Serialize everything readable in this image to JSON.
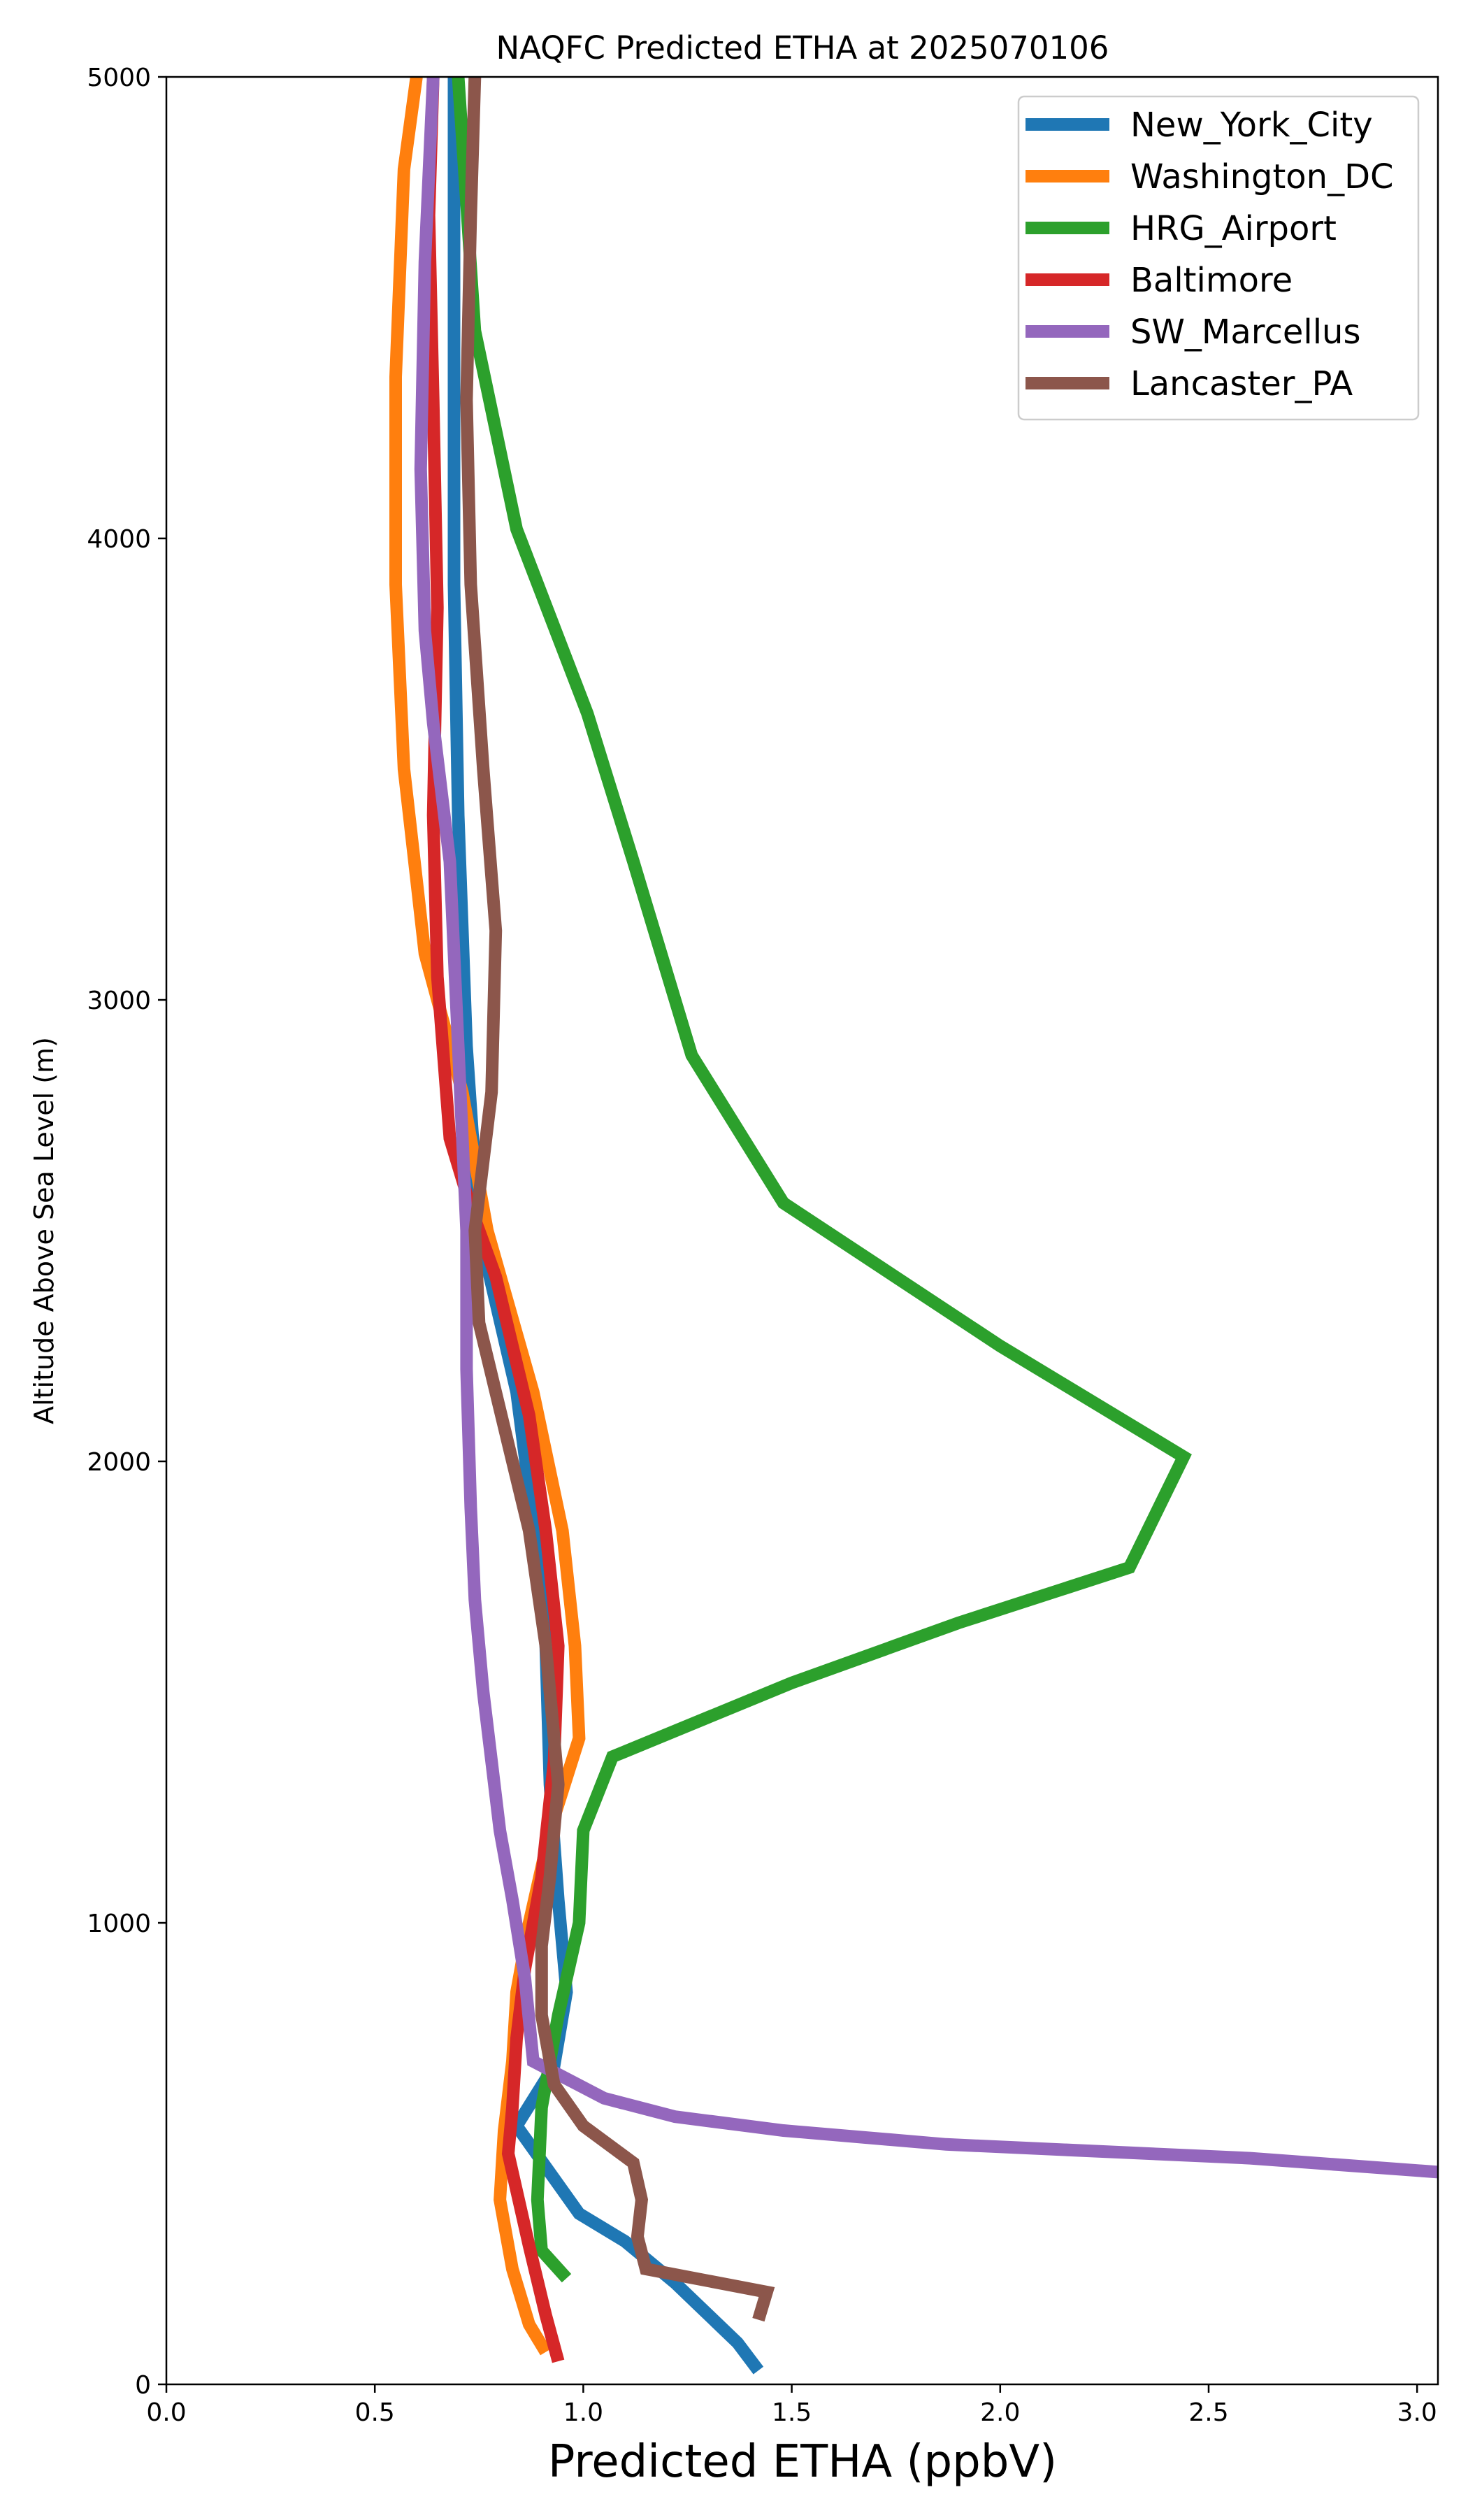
{
  "chart_data": {
    "type": "line",
    "title": "NAQFC Predicted ETHA at 2025070106",
    "xlabel": "Predicted ETHA (ppbV)",
    "ylabel": "Altitude Above Sea Level (m)",
    "xlim": [
      0.0,
      3.05
    ],
    "ylim": [
      0,
      5000
    ],
    "xticks": [
      {
        "value": 0.0,
        "label": "0.0"
      },
      {
        "value": 0.5,
        "label": "0.5"
      },
      {
        "value": 1.0,
        "label": "1.0"
      },
      {
        "value": 1.5,
        "label": "1.5"
      },
      {
        "value": 2.0,
        "label": "2.0"
      },
      {
        "value": 2.5,
        "label": "2.5"
      },
      {
        "value": 3.0,
        "label": "3.0"
      }
    ],
    "yticks": [
      {
        "value": 0,
        "label": "0"
      },
      {
        "value": 1000,
        "label": "1000"
      },
      {
        "value": 2000,
        "label": "2000"
      },
      {
        "value": 3000,
        "label": "3000"
      },
      {
        "value": 4000,
        "label": "4000"
      },
      {
        "value": 5000,
        "label": "5000"
      }
    ],
    "grid": false,
    "legend_position": "top-right",
    "series": [
      {
        "name": "New_York_City",
        "color": "#1f77b4",
        "points": [
          [
            1.42,
            30
          ],
          [
            1.37,
            90
          ],
          [
            1.22,
            220
          ],
          [
            1.1,
            310
          ],
          [
            0.99,
            370
          ],
          [
            0.84,
            560
          ],
          [
            0.93,
            690
          ],
          [
            0.96,
            850
          ],
          [
            0.94,
            1050
          ],
          [
            0.92,
            1300
          ],
          [
            0.91,
            1600
          ],
          [
            0.89,
            1800
          ],
          [
            0.84,
            2150
          ],
          [
            0.75,
            2500
          ],
          [
            0.72,
            2900
          ],
          [
            0.7,
            3400
          ],
          [
            0.69,
            3900
          ],
          [
            0.69,
            4300
          ],
          [
            0.69,
            4700
          ],
          [
            0.69,
            5000
          ]
        ]
      },
      {
        "name": "Washington_DC",
        "color": "#ff7f0e",
        "points": [
          [
            0.91,
            70
          ],
          [
            0.87,
            130
          ],
          [
            0.83,
            250
          ],
          [
            0.8,
            400
          ],
          [
            0.81,
            550
          ],
          [
            0.83,
            700
          ],
          [
            0.84,
            850
          ],
          [
            0.87,
            1000
          ],
          [
            0.92,
            1200
          ],
          [
            0.99,
            1400
          ],
          [
            0.98,
            1600
          ],
          [
            0.95,
            1850
          ],
          [
            0.88,
            2150
          ],
          [
            0.77,
            2500
          ],
          [
            0.71,
            2800
          ],
          [
            0.62,
            3100
          ],
          [
            0.57,
            3500
          ],
          [
            0.55,
            3900
          ],
          [
            0.55,
            4350
          ],
          [
            0.57,
            4800
          ],
          [
            0.6,
            5000
          ]
        ]
      },
      {
        "name": "HRG_Airport",
        "color": "#2ca02c",
        "points": [
          [
            0.96,
            230
          ],
          [
            0.9,
            290
          ],
          [
            0.89,
            400
          ],
          [
            0.9,
            600
          ],
          [
            0.94,
            800
          ],
          [
            0.99,
            1000
          ],
          [
            1.0,
            1200
          ],
          [
            1.07,
            1360
          ],
          [
            1.5,
            1520
          ],
          [
            1.9,
            1650
          ],
          [
            2.31,
            1770
          ],
          [
            2.44,
            2010
          ],
          [
            2.0,
            2250
          ],
          [
            1.48,
            2560
          ],
          [
            1.26,
            2880
          ],
          [
            1.12,
            3300
          ],
          [
            1.01,
            3620
          ],
          [
            0.84,
            4020
          ],
          [
            0.74,
            4450
          ],
          [
            0.7,
            5000
          ]
        ]
      },
      {
        "name": "Baltimore",
        "color": "#d62728",
        "points": [
          [
            0.94,
            50
          ],
          [
            0.91,
            150
          ],
          [
            0.87,
            300
          ],
          [
            0.82,
            500
          ],
          [
            0.83,
            600
          ],
          [
            0.84,
            750
          ],
          [
            0.86,
            900
          ],
          [
            0.9,
            1100
          ],
          [
            0.93,
            1350
          ],
          [
            0.94,
            1600
          ],
          [
            0.91,
            1850
          ],
          [
            0.87,
            2100
          ],
          [
            0.79,
            2400
          ],
          [
            0.73,
            2550
          ],
          [
            0.68,
            2700
          ],
          [
            0.65,
            3050
          ],
          [
            0.64,
            3400
          ],
          [
            0.65,
            3850
          ],
          [
            0.64,
            4300
          ],
          [
            0.63,
            4700
          ],
          [
            0.64,
            5000
          ]
        ]
      },
      {
        "name": "SW_Marcellus",
        "color": "#9467bd",
        "points": [
          [
            3.05,
            460
          ],
          [
            2.6,
            490
          ],
          [
            1.87,
            520
          ],
          [
            1.48,
            550
          ],
          [
            1.22,
            580
          ],
          [
            1.05,
            620
          ],
          [
            0.88,
            700
          ],
          [
            0.86,
            880
          ],
          [
            0.83,
            1050
          ],
          [
            0.8,
            1200
          ],
          [
            0.78,
            1350
          ],
          [
            0.76,
            1500
          ],
          [
            0.74,
            1700
          ],
          [
            0.73,
            1900
          ],
          [
            0.72,
            2200
          ],
          [
            0.72,
            2500
          ],
          [
            0.7,
            2900
          ],
          [
            0.68,
            3300
          ],
          [
            0.64,
            3600
          ],
          [
            0.62,
            3800
          ],
          [
            0.61,
            4150
          ],
          [
            0.62,
            4600
          ],
          [
            0.64,
            5000
          ]
        ]
      },
      {
        "name": "Lancaster_PA",
        "color": "#8c564b",
        "points": [
          [
            1.42,
            140
          ],
          [
            1.44,
            200
          ],
          [
            1.15,
            250
          ],
          [
            1.13,
            320
          ],
          [
            1.14,
            400
          ],
          [
            1.12,
            480
          ],
          [
            1.0,
            560
          ],
          [
            0.93,
            650
          ],
          [
            0.9,
            800
          ],
          [
            0.9,
            950
          ],
          [
            0.92,
            1100
          ],
          [
            0.94,
            1300
          ],
          [
            0.91,
            1600
          ],
          [
            0.87,
            1850
          ],
          [
            0.83,
            2000
          ],
          [
            0.75,
            2300
          ],
          [
            0.74,
            2500
          ],
          [
            0.78,
            2800
          ],
          [
            0.79,
            3150
          ],
          [
            0.76,
            3500
          ],
          [
            0.73,
            3900
          ],
          [
            0.72,
            4300
          ],
          [
            0.73,
            4700
          ],
          [
            0.74,
            5000
          ]
        ]
      }
    ]
  }
}
